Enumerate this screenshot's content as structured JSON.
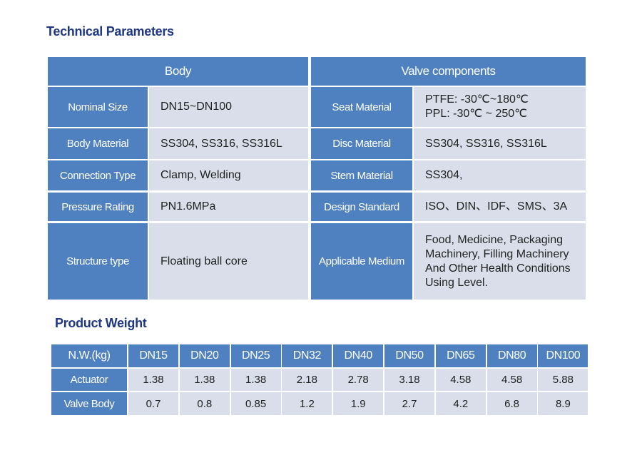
{
  "title": "Technical Parameters",
  "spec_table": {
    "headers": [
      "Body",
      "Valve components"
    ],
    "rows": [
      [
        "Nominal Size",
        "DN15~DN100",
        "Seat Material",
        [
          "PTFE: -30℃~180℃",
          "PPL:  -30℃ ~ 250℃"
        ]
      ],
      [
        "Body Material",
        "SS304, SS316, SS316L",
        "Disc Material",
        "SS304, SS316, SS316L"
      ],
      [
        "Connection Type",
        "Clamp, Welding",
        "Stem Material",
        "SS304,"
      ],
      [
        "Pressure Rating",
        "PN1.6MPa",
        "Design Standard",
        "ISO、DIN、IDF、SMS、3A"
      ],
      [
        "Structure type",
        "Floating ball core",
        "Applicable Medium",
        "Food, Medicine, Packaging Machinery, Filling Machinery And Other Health Conditions Using Level."
      ]
    ]
  },
  "weight_title": "Product Weight",
  "weight_table": {
    "headers": [
      "N.W.(kg)",
      "DN15",
      "DN20",
      "DN25",
      "DN32",
      "DN40",
      "DN50",
      "DN65",
      "DN80",
      "DN100"
    ],
    "rows": [
      [
        "Actuator",
        1.38,
        1.38,
        1.38,
        2.18,
        2.78,
        3.18,
        4.58,
        4.58,
        5.88
      ],
      [
        "Valve Body",
        0.7,
        0.8,
        0.85,
        1.2,
        1.9,
        2.7,
        4.2,
        6.8,
        8.9
      ]
    ]
  }
}
